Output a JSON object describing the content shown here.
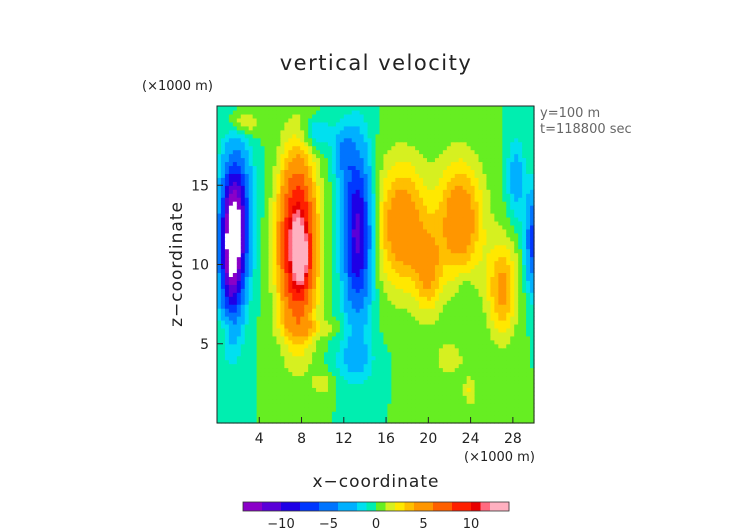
{
  "chart_data": {
    "type": "heatmap",
    "title": "vertical velocity",
    "xlabel": "x−coordinate",
    "ylabel": "z−coordinate",
    "x_unit_label": "(×1000 m)",
    "y_unit_label": "(×1000 m)",
    "xlim": [
      0,
      30
    ],
    "ylim": [
      0,
      20
    ],
    "x_ticks": [
      4,
      8,
      12,
      16,
      20,
      24,
      28
    ],
    "x_tick_labels": [
      "4",
      "8",
      "12",
      "16",
      "20",
      "24",
      "28"
    ],
    "y_ticks": [
      5,
      10,
      15
    ],
    "y_tick_labels": [
      "5",
      "10",
      "15"
    ],
    "annotations": [
      "y=100 m",
      "t=118800 sec"
    ],
    "colorbar": {
      "range": [
        -14,
        14
      ],
      "ticks": [
        -10,
        -5,
        0,
        5,
        10
      ],
      "tick_labels": [
        "−10",
        "−5",
        "0",
        "5",
        "10"
      ]
    },
    "color_levels": [
      {
        "min": -14,
        "color": "#8a00c8"
      },
      {
        "min": -12,
        "color": "#5a00d8"
      },
      {
        "min": -10,
        "color": "#1e00e6"
      },
      {
        "min": -8,
        "color": "#0038ff"
      },
      {
        "min": -6,
        "color": "#0074ff"
      },
      {
        "min": -4,
        "color": "#00b0ff"
      },
      {
        "min": -2,
        "color": "#00e0f0"
      },
      {
        "min": -1,
        "color": "#00eeb0"
      },
      {
        "min": 0,
        "color": "#66ee22"
      },
      {
        "min": 1,
        "color": "#d6f020"
      },
      {
        "min": 2,
        "color": "#ffe800"
      },
      {
        "min": 3,
        "color": "#ffbf00"
      },
      {
        "min": 4,
        "color": "#ff9600"
      },
      {
        "min": 6,
        "color": "#ff6000"
      },
      {
        "min": 8,
        "color": "#ff2000"
      },
      {
        "min": 10,
        "color": "#e80000"
      },
      {
        "min": 11,
        "color": "#ff6a80"
      },
      {
        "min": 12,
        "color": "#ffb0c0"
      }
    ],
    "features": [
      {
        "x": 1.4,
        "z": 11.2,
        "sx": 1.1,
        "sz": 4.5,
        "amp": -15
      },
      {
        "x": 2.2,
        "z": 13.2,
        "sx": 1.2,
        "sz": 4.0,
        "amp": -6
      },
      {
        "x": 7.6,
        "z": 11.3,
        "sx": 1.7,
        "sz": 5.2,
        "amp": 13
      },
      {
        "x": 8.0,
        "z": 10.5,
        "sx": 0.7,
        "sz": 1.6,
        "amp": 4
      },
      {
        "x": 13.3,
        "z": 12.0,
        "sx": 1.3,
        "sz": 5.0,
        "amp": -11
      },
      {
        "x": 12.0,
        "z": 17.0,
        "sx": 0.9,
        "sz": 1.6,
        "amp": -4
      },
      {
        "x": 17.5,
        "z": 12.5,
        "sx": 2.4,
        "sz": 4.0,
        "amp": 5.5
      },
      {
        "x": 20.0,
        "z": 9.5,
        "sx": 1.3,
        "sz": 2.6,
        "amp": 3.5
      },
      {
        "x": 23.0,
        "z": 12.8,
        "sx": 2.2,
        "sz": 3.8,
        "amp": 5.5
      },
      {
        "x": 27.0,
        "z": 8.5,
        "sx": 1.4,
        "sz": 3.0,
        "amp": 4.5
      },
      {
        "x": 28.3,
        "z": 15.5,
        "sx": 0.8,
        "sz": 2.5,
        "amp": -3
      },
      {
        "x": 30.0,
        "z": 11.5,
        "sx": 0.8,
        "sz": 3.0,
        "amp": -7
      },
      {
        "x": 23.5,
        "z": 8.5,
        "sx": 0.8,
        "sz": 1.3,
        "amp": -1
      },
      {
        "x": 2.5,
        "z": 19.0,
        "sx": 1.4,
        "sz": 0.8,
        "amp": 2.5
      },
      {
        "x": 9.5,
        "z": 18.3,
        "sx": 1.3,
        "sz": 1.0,
        "amp": -2.5
      },
      {
        "x": 13.0,
        "z": 4.0,
        "sx": 1.8,
        "sz": 1.4,
        "amp": -2.2
      },
      {
        "x": 10.0,
        "z": 2.5,
        "sx": 1.0,
        "sz": 0.8,
        "amp": 1.5
      },
      {
        "x": 22.0,
        "z": 4.0,
        "sx": 2.4,
        "sz": 1.8,
        "amp": 1.2
      },
      {
        "x": 9.0,
        "z": 6.0,
        "sx": 3.0,
        "sz": 0.6,
        "amp": 1.4
      },
      {
        "x": 1.0,
        "z": 6.0,
        "sx": 0.8,
        "sz": 0.8,
        "amp": 1.8
      },
      {
        "x": 24.0,
        "z": 2.0,
        "sx": 0.6,
        "sz": 0.8,
        "amp": 2.0
      }
    ]
  }
}
